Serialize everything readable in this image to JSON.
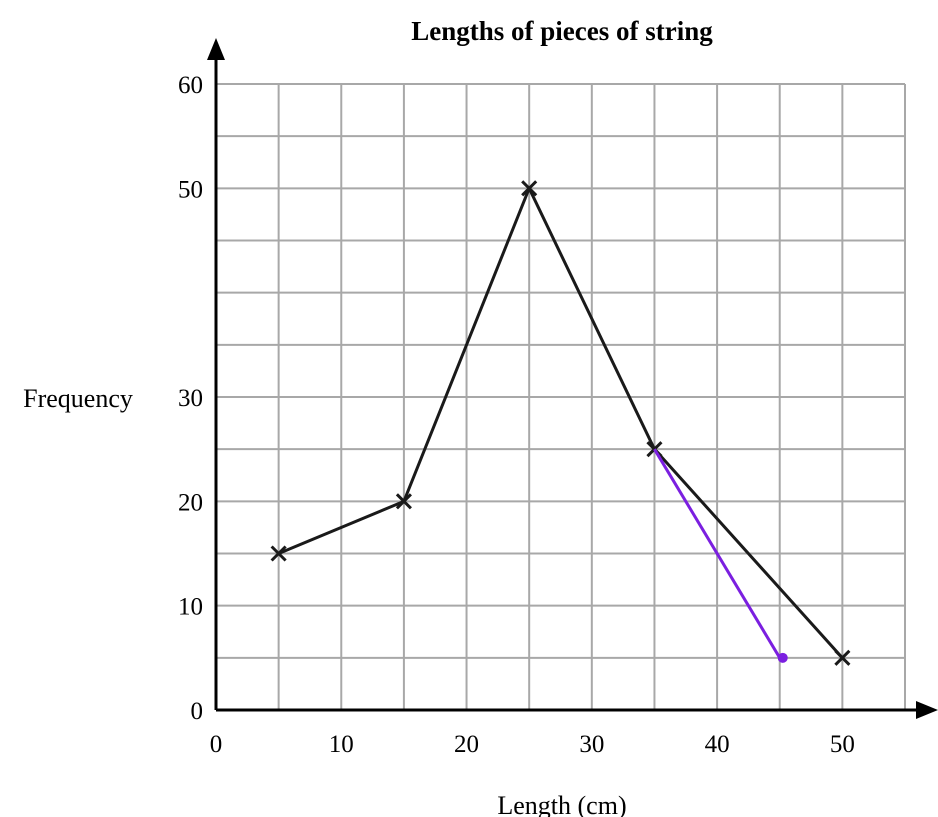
{
  "chart_data": {
    "type": "line",
    "title": "Lengths of pieces of string",
    "xlabel": "Length (cm)",
    "ylabel": "Frequency",
    "x_ticks": [
      "0",
      "10",
      "20",
      "30",
      "40",
      "50"
    ],
    "y_ticks": [
      {
        "value": 0,
        "label": "0"
      },
      {
        "value": 10,
        "label": "10"
      },
      {
        "value": 20,
        "label": "20"
      },
      {
        "value": 30,
        "label": "30"
      },
      {
        "value": 50,
        "label": "50"
      },
      {
        "value": 60,
        "label": "60"
      }
    ],
    "xlim": [
      0,
      55
    ],
    "ylim": [
      0,
      60
    ],
    "grid": true,
    "series": [
      {
        "color": "#1a1a1a",
        "marker": "cross",
        "x": [
          5,
          15,
          25,
          35,
          50
        ],
        "y": [
          15,
          20,
          50,
          25,
          5
        ]
      },
      {
        "color": "#7b1fe0",
        "marker": "dot",
        "x": [
          35,
          45
        ],
        "y": [
          25,
          5
        ]
      }
    ]
  }
}
